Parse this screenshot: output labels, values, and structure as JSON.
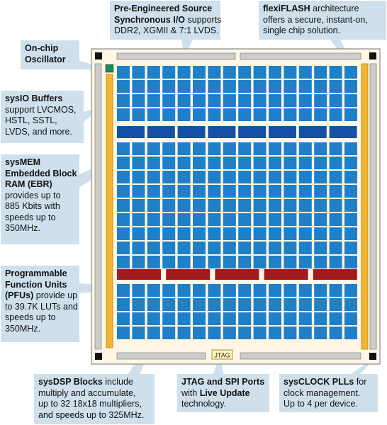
{
  "chip": {
    "die_color": "#fff6e6",
    "pfu_color": "#1f7fc7",
    "ebr_color": "#1650a6",
    "dsp_color": "#a31a1a",
    "flash_color": "#f2b531",
    "io_color": "#cccccc",
    "callout_bg": "#cfe0ec",
    "jtag_label": "JTAG"
  },
  "callouts": {
    "oscillator": {
      "lines": [
        {
          "bold": "On-chip",
          "rest": ""
        },
        {
          "bold": "Oscillator",
          "rest": ""
        }
      ]
    },
    "sysio": {
      "lines": [
        {
          "bold": "sysIO Buffers",
          "rest": ""
        },
        {
          "bold": "",
          "rest": "support LVCMOS,"
        },
        {
          "bold": "",
          "rest": "HSTL, SSTL,"
        },
        {
          "bold": "",
          "rest": "LVDS, and more."
        }
      ]
    },
    "sysmem": {
      "lines": [
        {
          "bold": "sysMEM",
          "rest": ""
        },
        {
          "bold": "Embedded Block",
          "rest": ""
        },
        {
          "bold": "RAM (EBR)",
          "rest": ""
        },
        {
          "bold": "",
          "rest": "provides up to"
        },
        {
          "bold": "",
          "rest": "885 Kbits with"
        },
        {
          "bold": "",
          "rest": "speeds up to"
        },
        {
          "bold": "",
          "rest": "350MHz."
        }
      ]
    },
    "pfu": {
      "lines": [
        {
          "bold": "Programmable",
          "rest": ""
        },
        {
          "bold": "Function Units",
          "rest": ""
        },
        {
          "bold": "(PFUs)",
          "rest": " provide up"
        },
        {
          "bold": "",
          "rest": "to 39.7K LUTs and"
        },
        {
          "bold": "",
          "rest": "speeds up to"
        },
        {
          "bold": "",
          "rest": "350MHz."
        }
      ]
    },
    "sysio_source": {
      "lines": [
        {
          "bold": "Pre-Engineered Source",
          "rest": ""
        },
        {
          "bold": "Synchronous I/O",
          "rest": " supports"
        },
        {
          "bold": "",
          "rest": "DDR2, XGMII & 7:1 LVDS."
        }
      ]
    },
    "flexiflash": {
      "lines": [
        {
          "bold": "flexiFLASH",
          "rest": " architecture"
        },
        {
          "bold": "",
          "rest": "offers a secure, instant-on,"
        },
        {
          "bold": "",
          "rest": "single chip solution."
        }
      ]
    },
    "sysdsp": {
      "lines": [
        {
          "bold": "sysDSP Blocks",
          "rest": " include"
        },
        {
          "bold": "",
          "rest": "multiply and accumulate,"
        },
        {
          "bold": "",
          "rest": "up to 32 18x18 multipliers,"
        },
        {
          "bold": "",
          "rest": "and speeds up to 325MHz."
        }
      ]
    },
    "jtag": {
      "lines": [
        {
          "bold": "JTAG and SPI Ports",
          "rest": ""
        },
        {
          "bold": "",
          "rest": "with "
        },
        {
          "bold": "",
          "rest": "technology."
        }
      ],
      "live_update": "Live Update"
    },
    "sysclock": {
      "lines": [
        {
          "bold": "sysCLOCK PLLs",
          "rest": " for"
        },
        {
          "bold": "",
          "rest": "clock management."
        },
        {
          "bold": "",
          "rest": "Up to 4 per device."
        }
      ]
    }
  }
}
